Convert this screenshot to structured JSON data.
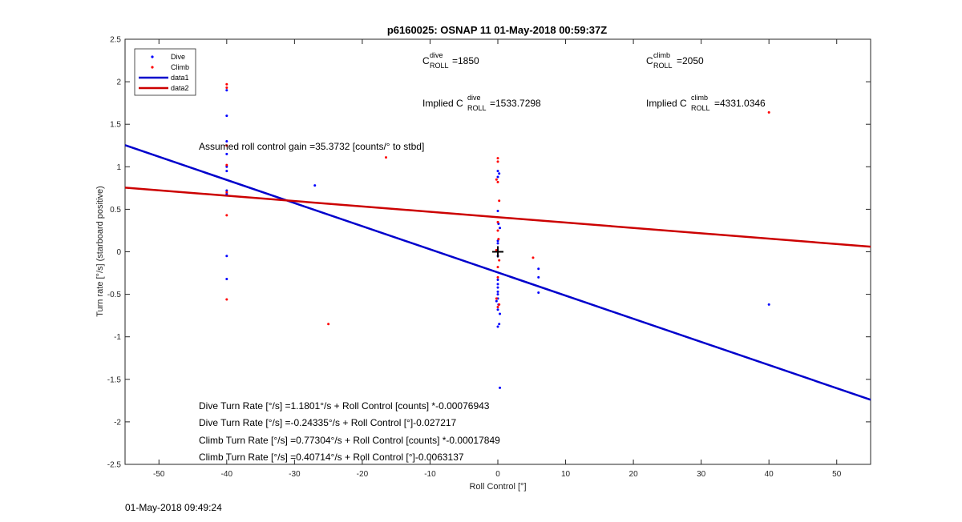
{
  "chart_data": {
    "type": "scatter",
    "title": "p6160025: OSNAP 11 01-May-2018 00:59:37Z",
    "xlabel": "Roll Control [°]",
    "ylabel": "Turn rate [°/s] (starboard positive)",
    "xlim": [
      -55,
      55
    ],
    "ylim": [
      -2.5,
      2.5
    ],
    "xticks": [
      -50,
      -40,
      -30,
      -20,
      -10,
      0,
      10,
      20,
      30,
      40,
      50
    ],
    "yticks": [
      -2.5,
      -2,
      -1.5,
      -1,
      -0.5,
      0,
      0.5,
      1,
      1.5,
      2,
      2.5
    ],
    "xtick_labels": [
      "-50",
      "-40",
      "-30",
      "-20",
      "-10",
      "0",
      "10",
      "20",
      "30",
      "40",
      "50"
    ],
    "ytick_labels": [
      "-2.5",
      "-2",
      "-1.5",
      "-1",
      "-0.5",
      "0",
      "0.5",
      "1",
      "1.5",
      "2",
      "2.5"
    ],
    "grid": false,
    "legend_position": "top-left",
    "legend": [
      {
        "label": "Dive",
        "kind": "marker",
        "color": "#0000ff"
      },
      {
        "label": "Climb",
        "kind": "marker",
        "color": "#ff0000"
      },
      {
        "label": "data1",
        "kind": "line",
        "color": "#0000cc"
      },
      {
        "label": "data2",
        "kind": "line",
        "color": "#cc0000"
      }
    ],
    "series": [
      {
        "name": "Dive",
        "color": "#0000ff",
        "points": [
          [
            -40,
            1.9
          ],
          [
            -40,
            1.6
          ],
          [
            -40,
            1.3
          ],
          [
            -40,
            1.15
          ],
          [
            -40,
            1.0
          ],
          [
            -40,
            0.95
          ],
          [
            -40,
            0.72
          ],
          [
            -40,
            0.68
          ],
          [
            -40,
            -0.05
          ],
          [
            -40,
            -0.32
          ],
          [
            -27,
            0.78
          ],
          [
            0,
            0.95
          ],
          [
            0.2,
            0.92
          ],
          [
            0,
            0.88
          ],
          [
            0,
            0.48
          ],
          [
            0.1,
            0.33
          ],
          [
            0.3,
            0.28
          ],
          [
            0,
            0.13
          ],
          [
            0,
            0.1
          ],
          [
            0,
            -0.05
          ],
          [
            0,
            -0.33
          ],
          [
            0,
            -0.38
          ],
          [
            0,
            -0.42
          ],
          [
            0,
            -0.47
          ],
          [
            0,
            -0.5
          ],
          [
            0,
            -0.55
          ],
          [
            -0.2,
            -0.58
          ],
          [
            0.1,
            -0.62
          ],
          [
            0,
            -0.68
          ],
          [
            0.3,
            -0.73
          ],
          [
            0,
            -0.88
          ],
          [
            0.2,
            -0.85
          ],
          [
            0.3,
            -1.6
          ],
          [
            6,
            -0.2
          ],
          [
            6,
            -0.3
          ],
          [
            6,
            -0.48
          ],
          [
            40,
            -0.62
          ]
        ]
      },
      {
        "name": "Climb",
        "color": "#ff0000",
        "points": [
          [
            -40,
            1.97
          ],
          [
            -40,
            1.93
          ],
          [
            -40,
            1.25
          ],
          [
            -40,
            1.02
          ],
          [
            -40,
            0.7
          ],
          [
            -40,
            0.43
          ],
          [
            -40,
            -0.56
          ],
          [
            -25,
            -0.85
          ],
          [
            -16.5,
            1.11
          ],
          [
            0,
            1.1
          ],
          [
            0,
            1.06
          ],
          [
            -0.2,
            0.85
          ],
          [
            0,
            0.82
          ],
          [
            0.2,
            0.6
          ],
          [
            0,
            0.35
          ],
          [
            0,
            0.25
          ],
          [
            0.1,
            0.15
          ],
          [
            -0.2,
            0.02
          ],
          [
            0.2,
            -0.1
          ],
          [
            0,
            -0.18
          ],
          [
            0,
            -0.3
          ],
          [
            -0.2,
            -0.55
          ],
          [
            0.2,
            -0.62
          ],
          [
            0,
            -0.65
          ],
          [
            5.2,
            -0.07
          ],
          [
            40,
            1.64
          ]
        ]
      }
    ],
    "fit_lines": [
      {
        "name": "data1",
        "color": "#0000cc",
        "intercept": -0.24335,
        "slope": -0.027217
      },
      {
        "name": "data2",
        "color": "#cc0000",
        "intercept": 0.40714,
        "slope": -0.0063137
      }
    ],
    "marker": {
      "x": 0,
      "y": 0,
      "symbol": "+"
    },
    "annotations": {
      "c_dive_base": "C",
      "c_dive_sup": "dive",
      "c_dive_sub": "ROLL",
      "c_dive_value": " =1850",
      "c_climb_base": "C",
      "c_climb_sup": "climb",
      "c_climb_sub": "ROLL",
      "c_climb_value": " =2050",
      "implied_prefix": "Implied C",
      "implied_dive_value": " =1533.7298",
      "implied_climb_value": " =4331.0346",
      "gain": "Assumed roll control gain =35.3732 [counts/° to stbd]",
      "eq1": "Dive Turn Rate [°/s] =1.1801°/s + Roll Control [counts] *-0.00076943",
      "eq2": "Dive Turn Rate [°/s] =-0.24335°/s + Roll Control [°]-0.027217",
      "eq3": "Climb Turn Rate [°/s] =0.77304°/s + Roll Control [counts] *-0.00017849",
      "eq4": "Climb Turn Rate [°/s] =0.40714°/s + Roll Control [°]-0.0063137"
    }
  },
  "footer": {
    "timestamp": "01-May-2018 09:49:24"
  }
}
